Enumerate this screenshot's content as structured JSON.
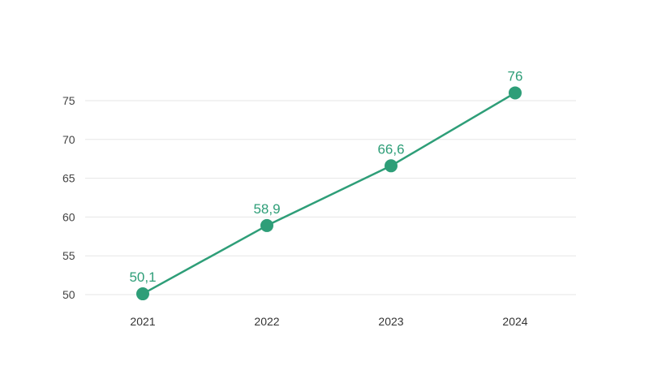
{
  "chart_data": {
    "type": "line",
    "title": "",
    "xlabel": "",
    "ylabel": "",
    "categories": [
      "2021",
      "2022",
      "2023",
      "2024"
    ],
    "series": [
      {
        "values": [
          50.1,
          58.9,
          66.6,
          76
        ],
        "data_labels": [
          "50,1",
          "58,9",
          "66,6",
          "76"
        ]
      }
    ],
    "y_ticks": [
      50,
      55,
      60,
      65,
      70,
      75
    ],
    "y_tick_labels": [
      "50",
      "55",
      "60",
      "65",
      "70",
      "75"
    ],
    "ylim": [
      50,
      75
    ],
    "grid": true,
    "legend": "none",
    "colors": {
      "series": "#2e9e78",
      "grid": "#e6e6e6",
      "tick_text": "#444444"
    }
  }
}
